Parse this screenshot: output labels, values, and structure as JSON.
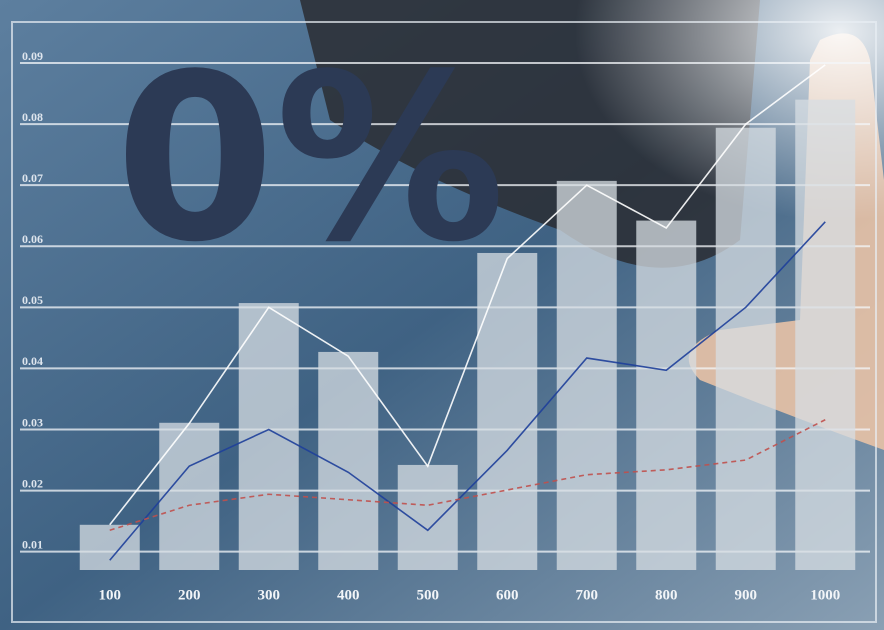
{
  "overlay_text": "0%",
  "chart_data": {
    "type": "bar",
    "categories": [
      "100",
      "200",
      "300",
      "400",
      "500",
      "600",
      "700",
      "800",
      "900",
      "1000"
    ],
    "values": [
      0.0144,
      0.0311,
      0.0507,
      0.0427,
      0.0242,
      0.0589,
      0.0707,
      0.0642,
      0.0794,
      0.084
    ],
    "color": "#d7dde3",
    "series": [
      {
        "type": "line",
        "color": "#ffffff",
        "values": [
          0.0144,
          0.031,
          0.05,
          0.042,
          0.024,
          0.058,
          0.07,
          0.063,
          0.08,
          0.0897
        ]
      },
      {
        "type": "line",
        "color": "#1e3f9a",
        "values": [
          0.0086,
          0.024,
          0.03,
          0.023,
          0.0135,
          0.0266,
          0.0417,
          0.0397,
          0.05,
          0.064
        ]
      },
      {
        "type": "line",
        "color": "#c0504d",
        "dashed": true,
        "values": [
          0.0135,
          0.0176,
          0.0194,
          0.0185,
          0.0176,
          0.0201,
          0.0226,
          0.0234,
          0.025,
          0.0316
        ]
      }
    ],
    "ylim": [
      0.007,
      0.09
    ],
    "yticks": [
      0.01,
      0.02,
      0.03,
      0.04,
      0.05,
      0.06,
      0.07,
      0.08,
      0.09
    ],
    "grid": true
  }
}
